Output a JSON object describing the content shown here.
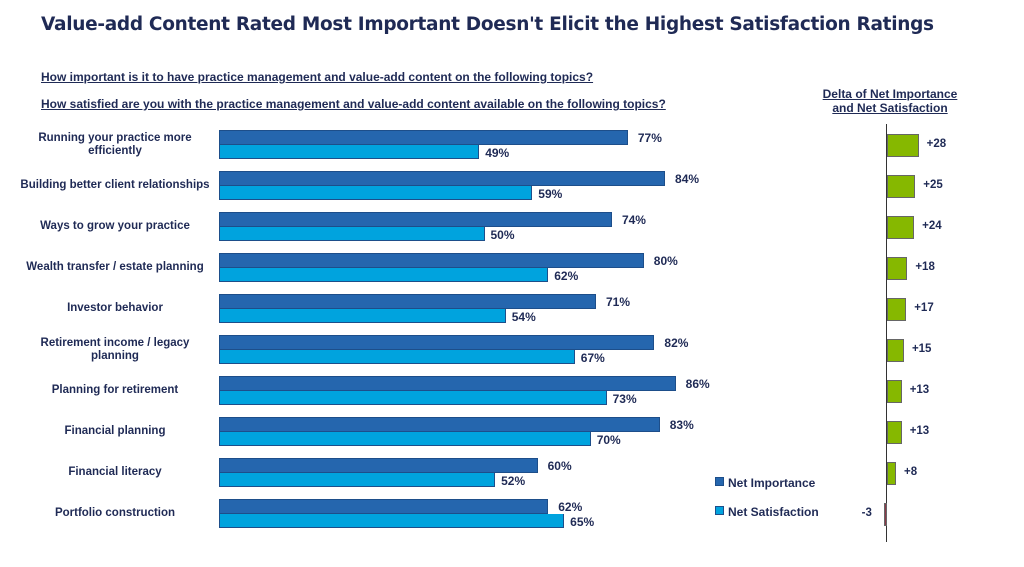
{
  "title": "Value-add Content Rated Most Important Doesn't Elicit the Highest Satisfaction Ratings",
  "questions": {
    "importance": "How important is it to have practice management and value-add content on the following topics?",
    "satisfaction": "How satisfied are you with the practice management and value-add content available on the following topics?"
  },
  "delta_title": [
    "Delta of Net Importance",
    "and Net Satisfaction"
  ],
  "legend": [
    {
      "label": "Net Importance",
      "color": "#2566ae"
    },
    {
      "label": "Net Satisfaction",
      "color": "#00a3de"
    }
  ],
  "colors": {
    "importance": "#2566ae",
    "satisfaction": "#00a3de",
    "delta_positive": "#86b800",
    "delta_negative": "#8b3a4a",
    "text": "#1f2a55"
  },
  "chart_data": [
    {
      "type": "bar",
      "orientation": "horizontal",
      "title": "",
      "categories": [
        "Running your practice more efficiently",
        "Building better client relationships",
        "Ways to grow your practice",
        "Wealth transfer / estate planning",
        "Investor behavior",
        "Retirement income / legacy planning",
        "Planning for retirement",
        "Financial planning",
        "Financial literacy",
        "Portfolio construction"
      ],
      "series": [
        {
          "name": "Net Importance",
          "values": [
            77,
            84,
            74,
            80,
            71,
            82,
            86,
            83,
            60,
            62
          ],
          "labels": [
            "77%",
            "84%",
            "74%",
            "80%",
            "71%",
            "82%",
            "86%",
            "83%",
            "60%",
            "62%"
          ]
        },
        {
          "name": "Net Satisfaction",
          "values": [
            49,
            59,
            50,
            62,
            54,
            67,
            73,
            70,
            52,
            65
          ],
          "labels": [
            "49%",
            "59%",
            "50%",
            "62%",
            "54%",
            "67%",
            "73%",
            "70%",
            "52%",
            "65%"
          ]
        }
      ],
      "xlim": [
        0,
        100
      ],
      "grid": false,
      "legend_position": "bottom-right"
    },
    {
      "type": "bar",
      "orientation": "horizontal",
      "title": "Delta of Net Importance and Net Satisfaction",
      "categories": [
        "Running your practice more efficiently",
        "Building better client relationships",
        "Ways to grow your practice",
        "Wealth transfer / estate planning",
        "Investor behavior",
        "Retirement income / legacy planning",
        "Planning for retirement",
        "Financial planning",
        "Financial literacy",
        "Portfolio construction"
      ],
      "values": [
        28,
        25,
        24,
        18,
        17,
        15,
        13,
        13,
        8,
        -3
      ],
      "labels": [
        "+28",
        "+25",
        "+24",
        "+18",
        "+17",
        "+15",
        "+13",
        "+13",
        "+8",
        "-3"
      ],
      "grid": false
    }
  ]
}
